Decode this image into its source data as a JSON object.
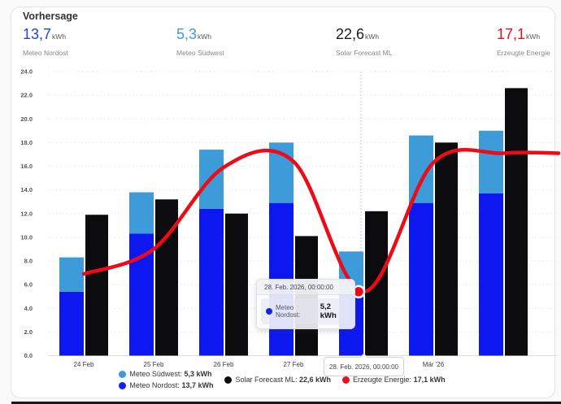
{
  "card": {
    "title": "Vorhersage"
  },
  "stats": [
    {
      "value": "13,7",
      "unit": "kWh",
      "label": "Meteo Nordost",
      "color": "#1f45d6"
    },
    {
      "value": "5,3",
      "unit": "kWh",
      "label": "Meteo Südwest",
      "color": "#3d9bda"
    },
    {
      "value": "22,6",
      "unit": "kWh",
      "label": "Solar Forecast ML",
      "color": "#1a1a1f"
    },
    {
      "value": "17,1",
      "unit": "kWh",
      "label": "Erzeugte Energie",
      "color": "#e8101c"
    }
  ],
  "tooltip": {
    "date": "28. Feb. 2026, 00:00:00",
    "series_label": "Meteo Nordost:",
    "value": "5,2 kWh",
    "dot_color": "#1322f2"
  },
  "x_axis_tooltip": {
    "label": "28. Feb. 2026, 00:00:00"
  },
  "legend": [
    {
      "label": "Meteo Südwest:",
      "value": "5,3 kWh",
      "color": "#3d9bda"
    },
    {
      "label": "Meteo Nordost:",
      "value": "13,7 kWh",
      "color": "#1322f2"
    },
    {
      "label": "Solar Forecast ML:",
      "value": "22,6 kWh",
      "color": "#0c0c0e"
    },
    {
      "label": "Erzeugte Energie:",
      "value": "17,1 kWh",
      "color": "#e8101c"
    }
  ],
  "chart_data": {
    "type": "bar+line",
    "categories": [
      "24 Feb",
      "25 Feb",
      "26 Feb",
      "27 Feb",
      "28 Feb",
      "Mär '26",
      ""
    ],
    "x_tick_labels": [
      "24 Feb",
      "25 Feb",
      "26 Feb",
      "27 Feb",
      "",
      "Mär '26",
      ""
    ],
    "y_tick_labels": [
      "0.0",
      "2.0",
      "4.0",
      "6.0",
      "8.0",
      "10.0",
      "12.0",
      "14.0",
      "16.0",
      "18.0",
      "20.0",
      "22.0",
      "24.0"
    ],
    "ylim": [
      0,
      24
    ],
    "grid": true,
    "legend_position": "bottom",
    "highlight_index": 4,
    "series": [
      {
        "name": "Meteo Nordost",
        "type": "bar",
        "stack": "meteo",
        "color": "#0d18f0",
        "values": [
          5.4,
          10.3,
          12.4,
          12.9,
          5.2,
          12.9,
          13.7
        ]
      },
      {
        "name": "Meteo Südwest",
        "type": "bar",
        "stack": "meteo",
        "color": "#3d9bda",
        "values": [
          2.9,
          3.5,
          5.0,
          5.1,
          3.6,
          5.7,
          5.3
        ]
      },
      {
        "name": "Solar Forecast ML",
        "type": "bar",
        "color": "#0c0c0e",
        "values": [
          11.9,
          13.2,
          12.0,
          10.1,
          12.2,
          18.0,
          22.6
        ]
      },
      {
        "name": "Erzeugte Energie",
        "type": "line",
        "color": "#ee0a16",
        "values": [
          6.9,
          9.0,
          15.9,
          16.4,
          5.4,
          16.3,
          17.1
        ]
      }
    ]
  }
}
